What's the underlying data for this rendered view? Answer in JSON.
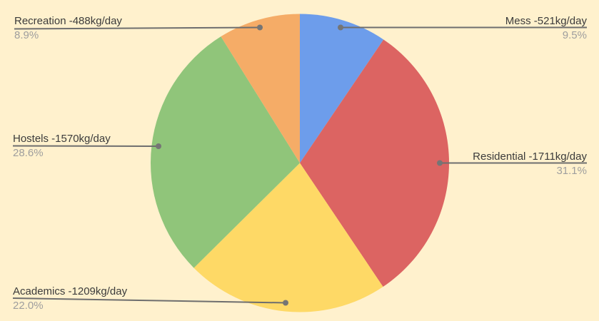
{
  "chart_data": {
    "type": "pie",
    "title": "",
    "categories": [
      "Mess",
      "Residential",
      "Academics",
      "Hostels",
      "Recreation"
    ],
    "values": [
      521,
      1711,
      1209,
      1570,
      488
    ],
    "percentages": [
      9.5,
      31.1,
      22.0,
      28.6,
      8.9
    ],
    "unit": "kg/day",
    "colors": [
      "#6d9deb",
      "#dc6462",
      "#fed966",
      "#90c57a",
      "#f5ac67"
    ],
    "start_angle_deg": 0,
    "direction": "clockwise",
    "legend_position": "callout-labels",
    "background": "#fff1cd",
    "label_color": "#3b3b3b",
    "pct_color": "#9e9e9e",
    "line_color": "#6e6e6e",
    "dot_color": "#757575"
  },
  "labels": {
    "mess": {
      "text": "Mess -521kg/day",
      "pct": "9.5%"
    },
    "residential": {
      "text": "Residential -1711kg/day",
      "pct": "31.1%"
    },
    "academics": {
      "text": "Academics -1209kg/day",
      "pct": "22.0%"
    },
    "hostels": {
      "text": "Hostels -1570kg/day",
      "pct": "28.6%"
    },
    "recreation": {
      "text": "Recreation -488kg/day",
      "pct": "8.9%"
    }
  }
}
